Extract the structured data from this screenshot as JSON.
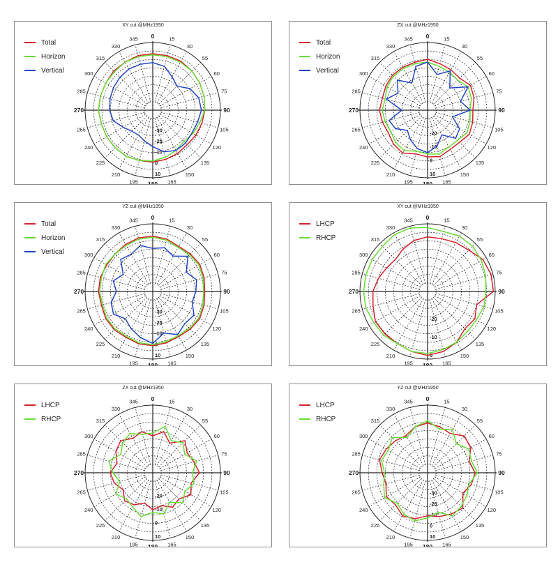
{
  "colors": {
    "total": "#d4202a",
    "horizon": "#66dd33",
    "vertical": "#1f45c4",
    "lhcp": "#d4202a",
    "rhcp": "#66dd33",
    "grid": "#222222"
  },
  "chart_data": [
    {
      "type": "polar",
      "title": "XY cut @MHz1950",
      "angle_labels": [
        "0",
        "15",
        "30",
        "55",
        "60",
        "75",
        "90",
        "105",
        "120",
        "135",
        "150",
        "165",
        "180",
        "195",
        "210",
        "225",
        "240",
        "265",
        "270",
        "285",
        "300",
        "315",
        "330",
        "345"
      ],
      "radial_labels": [
        "-30",
        "-20",
        "-10",
        "0",
        "10"
      ],
      "rlim": [
        -40,
        10
      ],
      "grid": true,
      "legend_position": "top-left",
      "series": [
        {
          "name": "Total",
          "color_key": "total",
          "values": [
            0,
            0,
            0,
            -1,
            -2,
            -3,
            -4,
            -5,
            -6,
            -7,
            -6,
            -5,
            -4,
            -4,
            -3,
            -3,
            -3,
            -3,
            -2,
            -2,
            -2,
            -1,
            -1,
            0
          ]
        },
        {
          "name": "Horizon",
          "color_key": "horizon",
          "values": [
            -1,
            -1,
            -1,
            -1,
            -2,
            -3,
            -4,
            -7,
            -9,
            -11,
            -9,
            -7,
            -5,
            -4,
            -3,
            -3,
            -3,
            -3,
            -2,
            -2,
            -2,
            -2,
            -1,
            -1
          ]
        },
        {
          "name": "Vertical",
          "color_key": "vertical",
          "values": [
            -8,
            -10,
            -16,
            -20,
            -12,
            -8,
            -7,
            -9,
            -10,
            -9,
            -9,
            -12,
            -18,
            -22,
            -25,
            -24,
            -20,
            -14,
            -12,
            -11,
            -10,
            -9,
            -8,
            -8
          ]
        }
      ]
    },
    {
      "type": "polar",
      "title": "ZX cut @MHz1950",
      "angle_labels": [
        "0",
        "15",
        "30",
        "55",
        "60",
        "75",
        "90",
        "105",
        "120",
        "135",
        "150",
        "165",
        "180",
        "195",
        "210",
        "225",
        "240",
        "265",
        "270",
        "285",
        "300",
        "315",
        "330",
        "345"
      ],
      "radial_labels": [
        "-20",
        "-10",
        "0",
        "10"
      ],
      "rlim": [
        -30,
        10
      ],
      "grid": true,
      "legend_position": "top-left",
      "series": [
        {
          "name": "Total",
          "color_key": "total",
          "values": [
            -2,
            -4,
            -5,
            -6,
            -3,
            -4,
            -6,
            -5,
            -4,
            -6,
            -6,
            -4,
            -5,
            -6,
            -3,
            -4,
            -6,
            -5,
            -4,
            -5,
            -4,
            -3,
            -3,
            -3
          ]
        },
        {
          "name": "Horizon",
          "color_key": "horizon",
          "values": [
            -4,
            -6,
            -7,
            -8,
            -5,
            -6,
            -8,
            -7,
            -6,
            -8,
            -8,
            -6,
            -7,
            -8,
            -5,
            -6,
            -8,
            -7,
            -6,
            -7,
            -5,
            -4,
            -4,
            -4
          ]
        },
        {
          "name": "Vertical",
          "color_key": "vertical",
          "values": [
            -4,
            -12,
            -6,
            -16,
            -5,
            -14,
            -8,
            -20,
            -12,
            -10,
            -18,
            -12,
            -8,
            -10,
            -14,
            -18,
            -12,
            -10,
            -20,
            -8,
            -14,
            -8,
            -16,
            -6
          ]
        }
      ]
    },
    {
      "type": "polar",
      "title": "YZ cut @MHz1950",
      "angle_labels": [
        "0",
        "15",
        "30",
        "55",
        "60",
        "75",
        "90",
        "105",
        "120",
        "135",
        "150",
        "165",
        "180",
        "195",
        "210",
        "225",
        "240",
        "265",
        "270",
        "285",
        "300",
        "315",
        "330",
        "345"
      ],
      "radial_labels": [
        "-30",
        "-20",
        "-10",
        "0",
        "10"
      ],
      "rlim": [
        -40,
        10
      ],
      "grid": true,
      "legend_position": "top-left",
      "series": [
        {
          "name": "Total",
          "color_key": "total",
          "values": [
            -1,
            -2,
            -4,
            -3,
            -2,
            -3,
            -4,
            -3,
            -2,
            -3,
            -4,
            -3,
            -2,
            -2,
            -3,
            -2,
            -2,
            -3,
            -2,
            -2,
            -3,
            -3,
            -2,
            -1
          ]
        },
        {
          "name": "Horizon",
          "color_key": "horizon",
          "values": [
            -2,
            -3,
            -5,
            -4,
            -3,
            -4,
            -5,
            -4,
            -3,
            -4,
            -5,
            -4,
            -3,
            -3,
            -4,
            -3,
            -3,
            -4,
            -3,
            -3,
            -2,
            -3,
            -3,
            -2
          ]
        },
        {
          "name": "Vertical",
          "color_key": "vertical",
          "values": [
            -12,
            -10,
            -14,
            -6,
            -16,
            -10,
            -12,
            -14,
            -8,
            -10,
            -6,
            -12,
            -4,
            -8,
            -12,
            -16,
            -10,
            -12,
            -18,
            -14,
            -20,
            -10,
            -12,
            -8
          ]
        }
      ]
    },
    {
      "type": "polar",
      "title": "XY cut @MHz1950",
      "angle_labels": [
        "0",
        "15",
        "30",
        "55",
        "60",
        "75",
        "90",
        "105",
        "120",
        "135",
        "150",
        "165",
        "180",
        "195",
        "210",
        "225",
        "240",
        "265",
        "270",
        "285",
        "300",
        "315",
        "330",
        "345"
      ],
      "radial_labels": [
        "-20",
        "-10",
        "0"
      ],
      "rlim": [
        -30,
        0
      ],
      "grid": true,
      "legend_position": "top-left",
      "series": [
        {
          "name": "LHCP",
          "color_key": "lhcp",
          "values": [
            -7,
            -7,
            -6,
            -5,
            -2,
            -1,
            -1,
            -9,
            -7,
            -8,
            -5,
            -3,
            -2,
            -3,
            -4,
            -4,
            -4,
            -6,
            -7,
            -9,
            -11,
            -12,
            -10,
            -8
          ]
        },
        {
          "name": "RHCP",
          "color_key": "rhcp",
          "values": [
            -2,
            -3,
            -2,
            -2,
            -3,
            -4,
            -5,
            -5,
            -6,
            -6,
            -5,
            -4,
            -3,
            -3,
            -4,
            -3,
            -3,
            -2,
            -2,
            -2,
            -2,
            -2,
            -1,
            -1
          ]
        }
      ]
    },
    {
      "type": "polar",
      "title": "ZX cut @MHz1950",
      "angle_labels": [
        "0",
        "15",
        "30",
        "55",
        "60",
        "75",
        "90",
        "105",
        "120",
        "135",
        "150",
        "165",
        "180",
        "195",
        "210",
        "225",
        "240",
        "265",
        "270",
        "285",
        "300",
        "315",
        "330",
        "345"
      ],
      "radial_labels": [
        "-20",
        "-10",
        "0",
        "10"
      ],
      "rlim": [
        -30,
        10
      ],
      "grid": true,
      "legend_position": "top-left",
      "series": [
        {
          "name": "LHCP",
          "color_key": "lhcp",
          "values": [
            -12,
            -8,
            -14,
            -6,
            -10,
            -8,
            -5,
            -10,
            -7,
            -12,
            -10,
            -14,
            -12,
            -16,
            -12,
            -10,
            -14,
            -10,
            -8,
            -12,
            -8,
            -6,
            -10,
            -8
          ]
        },
        {
          "name": "RHCP",
          "color_key": "rhcp",
          "values": [
            -10,
            -4,
            -12,
            -8,
            -12,
            -6,
            -10,
            -8,
            -12,
            -8,
            -14,
            -8,
            -10,
            -6,
            -10,
            -12,
            -8,
            -14,
            -10,
            -6,
            -12,
            -8,
            -6,
            -10
          ]
        }
      ]
    },
    {
      "type": "polar",
      "title": "YZ cut @MHz1950",
      "angle_labels": [
        "0",
        "15",
        "30",
        "55",
        "60",
        "75",
        "90",
        "105",
        "120",
        "135",
        "150",
        "165",
        "180",
        "195",
        "210",
        "225",
        "240",
        "265",
        "270",
        "285",
        "300",
        "315",
        "330",
        "345"
      ],
      "radial_labels": [
        "-30",
        "-20",
        "-10",
        "0",
        "10"
      ],
      "rlim": [
        -40,
        10
      ],
      "grid": true,
      "legend_position": "top-left",
      "series": [
        {
          "name": "LHCP",
          "color_key": "lhcp",
          "values": [
            -6,
            -8,
            -10,
            -4,
            -6,
            -12,
            -8,
            -10,
            -14,
            -6,
            -8,
            -10,
            -12,
            -8,
            -6,
            -10,
            -8,
            -12,
            -10,
            -6,
            -8,
            -10,
            -12,
            -8
          ]
        },
        {
          "name": "RHCP",
          "color_key": "rhcp",
          "values": [
            -4,
            -10,
            -6,
            -14,
            -8,
            -10,
            -6,
            -12,
            -10,
            -8,
            -6,
            -14,
            -10,
            -6,
            -8,
            -12,
            -6,
            -10,
            -12,
            -8,
            -10,
            -6,
            -14,
            -8
          ]
        }
      ]
    }
  ]
}
